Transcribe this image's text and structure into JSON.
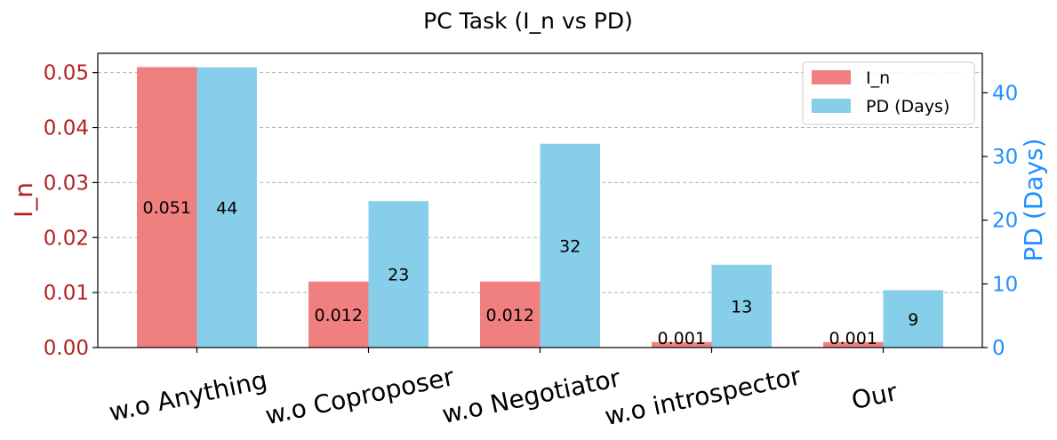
{
  "chart_data": {
    "type": "bar",
    "title": "PC Task (I_n vs PD)",
    "categories": [
      "w.o Anything",
      "w.o Coproposer",
      "w.o Negotiator",
      "w.o introspector",
      "Our"
    ],
    "series": [
      {
        "name": "I_n",
        "axis": "left",
        "color": "#f08080",
        "values": [
          0.051,
          0.012,
          0.012,
          0.001,
          0.001
        ],
        "labels": [
          "0.051",
          "0.012",
          "0.012",
          "0.001",
          "0.001"
        ]
      },
      {
        "name": "PD (Days)",
        "axis": "right",
        "color": "#87ceeb",
        "values": [
          44,
          23,
          32,
          13,
          9
        ],
        "labels": [
          "44",
          "23",
          "32",
          "13",
          "9"
        ]
      }
    ],
    "y_left": {
      "label": "I_n",
      "color": "#b22222",
      "ylim": [
        0,
        0.0535
      ],
      "ticks": [
        0.0,
        0.01,
        0.02,
        0.03,
        0.04,
        0.05
      ],
      "tick_labels": [
        "0.00",
        "0.01",
        "0.02",
        "0.03",
        "0.04",
        "0.05"
      ]
    },
    "y_right": {
      "label": "PD (Days)",
      "color": "#1e90ff",
      "ylim": [
        0,
        46.2
      ],
      "ticks": [
        0,
        10,
        20,
        30,
        40
      ],
      "tick_labels": [
        "0",
        "10",
        "20",
        "30",
        "40"
      ]
    },
    "grid": "horizontal-dashed",
    "legend": "top-right"
  }
}
